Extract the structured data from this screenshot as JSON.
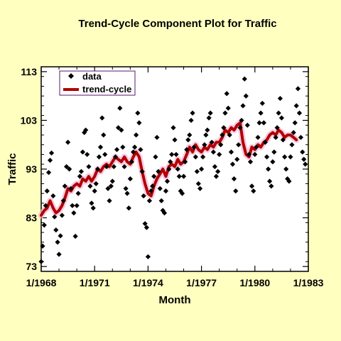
{
  "chart_data": {
    "type": "scatter",
    "title": "Trend-Cycle Component Plot for Traffic",
    "xlabel": "Month",
    "ylabel": "Traffic",
    "xlim": [
      1968,
      1983
    ],
    "ylim": [
      72,
      114
    ],
    "x_ticks": [
      {
        "value": 1968,
        "label": "1/1968"
      },
      {
        "value": 1971,
        "label": "1/1971"
      },
      {
        "value": 1974,
        "label": "1/1974"
      },
      {
        "value": 1977,
        "label": "1/1977"
      },
      {
        "value": 1980,
        "label": "1/1980"
      },
      {
        "value": 1983,
        "label": "1/1983"
      }
    ],
    "y_ticks": [
      {
        "value": 73,
        "label": "73"
      },
      {
        "value": 83,
        "label": "83"
      },
      {
        "value": 93,
        "label": "93"
      },
      {
        "value": 103,
        "label": "103"
      },
      {
        "value": 113,
        "label": "113"
      }
    ],
    "legend": {
      "position": "top-left",
      "items": [
        {
          "label": "data",
          "marker": "diamond",
          "color": "#000000"
        },
        {
          "label": "trend-cycle",
          "marker": "line",
          "color": "#b30000"
        }
      ]
    },
    "series": [
      {
        "name": "data",
        "style": "markers",
        "color": "#000000",
        "points": [
          [
            1968.0,
            74.0
          ],
          [
            1968.08,
            77.2
          ],
          [
            1968.17,
            81.5
          ],
          [
            1968.25,
            85.5
          ],
          [
            1968.33,
            88.5
          ],
          [
            1968.42,
            92.3
          ],
          [
            1968.5,
            94.8
          ],
          [
            1968.58,
            96.3
          ],
          [
            1968.67,
            87.5
          ],
          [
            1968.75,
            83.2
          ],
          [
            1968.83,
            80.5
          ],
          [
            1968.92,
            78.0
          ],
          [
            1969.0,
            75.5
          ],
          [
            1969.08,
            79.3
          ],
          [
            1969.17,
            83.5
          ],
          [
            1969.25,
            86.5
          ],
          [
            1969.33,
            89.5
          ],
          [
            1969.42,
            93.5
          ],
          [
            1969.5,
            98.5
          ],
          [
            1969.58,
            93.0
          ],
          [
            1969.67,
            89.0
          ],
          [
            1969.75,
            85.5
          ],
          [
            1969.83,
            84.0
          ],
          [
            1969.92,
            79.2
          ],
          [
            1970.0,
            85.5
          ],
          [
            1970.08,
            88.0
          ],
          [
            1970.17,
            91.5
          ],
          [
            1970.25,
            92.5
          ],
          [
            1970.33,
            96.5
          ],
          [
            1970.42,
            100.5
          ],
          [
            1970.5,
            101.0
          ],
          [
            1970.58,
            96.0
          ],
          [
            1970.67,
            93.5
          ],
          [
            1970.75,
            89.5
          ],
          [
            1970.83,
            86.0
          ],
          [
            1970.92,
            85.0
          ],
          [
            1971.0,
            88.5
          ],
          [
            1971.08,
            90.0
          ],
          [
            1971.17,
            93.0
          ],
          [
            1971.25,
            95.5
          ],
          [
            1971.33,
            97.5
          ],
          [
            1971.42,
            103.5
          ],
          [
            1971.5,
            100.0
          ],
          [
            1971.58,
            96.0
          ],
          [
            1971.67,
            93.5
          ],
          [
            1971.75,
            89.0
          ],
          [
            1971.83,
            86.5
          ],
          [
            1971.92,
            89.5
          ],
          [
            1972.0,
            90.5
          ],
          [
            1972.08,
            93.5
          ],
          [
            1972.17,
            95.5
          ],
          [
            1972.25,
            97.0
          ],
          [
            1972.33,
            101.5
          ],
          [
            1972.42,
            105.5
          ],
          [
            1972.5,
            101.0
          ],
          [
            1972.58,
            97.5
          ],
          [
            1972.67,
            93.5
          ],
          [
            1972.75,
            89.0
          ],
          [
            1972.83,
            88.0
          ],
          [
            1972.92,
            85.0
          ],
          [
            1973.0,
            91.0
          ],
          [
            1973.08,
            94.5
          ],
          [
            1973.17,
            96.5
          ],
          [
            1973.25,
            97.5
          ],
          [
            1973.33,
            100.0
          ],
          [
            1973.42,
            104.5
          ],
          [
            1973.5,
            102.5
          ],
          [
            1973.58,
            97.0
          ],
          [
            1973.67,
            92.5
          ],
          [
            1973.75,
            87.5
          ],
          [
            1973.83,
            81.8
          ],
          [
            1973.92,
            81.0
          ],
          [
            1974.0,
            75.0
          ],
          [
            1974.08,
            86.5
          ],
          [
            1974.17,
            88.5
          ],
          [
            1974.25,
            89.5
          ],
          [
            1974.33,
            91.5
          ],
          [
            1974.42,
            95.5
          ],
          [
            1974.5,
            99.5
          ],
          [
            1974.58,
            92.5
          ],
          [
            1974.67,
            89.0
          ],
          [
            1974.75,
            86.5
          ],
          [
            1974.83,
            84.5
          ],
          [
            1974.92,
            84.0
          ],
          [
            1975.0,
            88.5
          ],
          [
            1975.08,
            90.5
          ],
          [
            1975.17,
            93.0
          ],
          [
            1975.25,
            94.5
          ],
          [
            1975.33,
            96.0
          ],
          [
            1975.42,
            101.5
          ],
          [
            1975.5,
            99.0
          ],
          [
            1975.58,
            96.0
          ],
          [
            1975.67,
            93.0
          ],
          [
            1975.75,
            91.5
          ],
          [
            1975.83,
            88.5
          ],
          [
            1975.92,
            88.0
          ],
          [
            1976.0,
            91.5
          ],
          [
            1976.08,
            94.5
          ],
          [
            1976.17,
            97.0
          ],
          [
            1976.25,
            99.0
          ],
          [
            1976.33,
            100.0
          ],
          [
            1976.42,
            103.0
          ],
          [
            1976.5,
            104.5
          ],
          [
            1976.58,
            97.5
          ],
          [
            1976.67,
            95.5
          ],
          [
            1976.75,
            92.5
          ],
          [
            1976.83,
            90.0
          ],
          [
            1976.92,
            89.0
          ],
          [
            1977.0,
            93.0
          ],
          [
            1977.08,
            95.5
          ],
          [
            1977.17,
            98.0
          ],
          [
            1977.25,
            100.0
          ],
          [
            1977.33,
            101.0
          ],
          [
            1977.42,
            103.5
          ],
          [
            1977.5,
            104.5
          ],
          [
            1977.58,
            98.5
          ],
          [
            1977.67,
            96.5
          ],
          [
            1977.75,
            93.5
          ],
          [
            1977.83,
            91.5
          ],
          [
            1977.92,
            92.5
          ],
          [
            1978.0,
            96.0
          ],
          [
            1978.08,
            98.0
          ],
          [
            1978.17,
            100.0
          ],
          [
            1978.25,
            101.5
          ],
          [
            1978.33,
            104.5
          ],
          [
            1978.42,
            108.5
          ],
          [
            1978.5,
            105.5
          ],
          [
            1978.58,
            100.0
          ],
          [
            1978.67,
            96.5
          ],
          [
            1978.75,
            94.0
          ],
          [
            1978.83,
            91.0
          ],
          [
            1978.92,
            88.5
          ],
          [
            1979.0,
            95.0
          ],
          [
            1979.08,
            98.0
          ],
          [
            1979.17,
            101.5
          ],
          [
            1979.25,
            103.0
          ],
          [
            1979.33,
            106.0
          ],
          [
            1979.42,
            111.5
          ],
          [
            1979.5,
            108.0
          ],
          [
            1979.58,
            102.0
          ],
          [
            1979.67,
            96.0
          ],
          [
            1979.75,
            94.5
          ],
          [
            1979.83,
            89.5
          ],
          [
            1979.92,
            88.5
          ],
          [
            1980.0,
            96.0
          ],
          [
            1980.08,
            97.5
          ],
          [
            1980.17,
            99.5
          ],
          [
            1980.25,
            102.5
          ],
          [
            1980.33,
            104.5
          ],
          [
            1980.42,
            106.5
          ],
          [
            1980.5,
            102.5
          ],
          [
            1980.58,
            98.5
          ],
          [
            1980.67,
            95.5
          ],
          [
            1980.75,
            93.0
          ],
          [
            1980.83,
            90.5
          ],
          [
            1980.92,
            89.5
          ],
          [
            1981.0,
            94.5
          ],
          [
            1981.08,
            96.5
          ],
          [
            1981.17,
            99.5
          ],
          [
            1981.25,
            101.5
          ],
          [
            1981.33,
            104.5
          ],
          [
            1981.42,
            107.5
          ],
          [
            1981.5,
            103.5
          ],
          [
            1981.58,
            99.0
          ],
          [
            1981.67,
            95.5
          ],
          [
            1981.75,
            93.0
          ],
          [
            1981.83,
            91.0
          ],
          [
            1981.92,
            90.5
          ],
          [
            1982.0,
            95.5
          ],
          [
            1982.08,
            98.0
          ],
          [
            1982.17,
            100.5
          ],
          [
            1982.25,
            102.5
          ],
          [
            1982.33,
            106.0
          ],
          [
            1982.42,
            109.5
          ],
          [
            1982.5,
            104.5
          ],
          [
            1982.58,
            99.5
          ],
          [
            1982.67,
            96.5
          ],
          [
            1982.75,
            95.0
          ],
          [
            1982.83,
            94.0
          ]
        ]
      },
      {
        "name": "trend-cycle",
        "style": "line",
        "color": "#b30000",
        "points": [
          [
            1968.0,
            83.5
          ],
          [
            1968.17,
            84.5
          ],
          [
            1968.33,
            85.0
          ],
          [
            1968.5,
            86.5
          ],
          [
            1968.67,
            85.0
          ],
          [
            1968.83,
            84.0
          ],
          [
            1969.0,
            84.5
          ],
          [
            1969.17,
            85.5
          ],
          [
            1969.33,
            87.0
          ],
          [
            1969.5,
            89.0
          ],
          [
            1969.67,
            88.5
          ],
          [
            1969.83,
            89.5
          ],
          [
            1970.0,
            90.0
          ],
          [
            1970.17,
            89.5
          ],
          [
            1970.33,
            91.0
          ],
          [
            1970.5,
            90.5
          ],
          [
            1970.67,
            91.5
          ],
          [
            1970.83,
            90.5
          ],
          [
            1971.0,
            91.5
          ],
          [
            1971.17,
            93.0
          ],
          [
            1971.33,
            92.5
          ],
          [
            1971.5,
            93.5
          ],
          [
            1971.67,
            94.0
          ],
          [
            1971.83,
            93.5
          ],
          [
            1972.0,
            94.5
          ],
          [
            1972.17,
            95.5
          ],
          [
            1972.33,
            95.0
          ],
          [
            1972.5,
            94.5
          ],
          [
            1972.67,
            95.5
          ],
          [
            1972.83,
            94.5
          ],
          [
            1973.0,
            94.0
          ],
          [
            1973.17,
            95.5
          ],
          [
            1973.33,
            96.5
          ],
          [
            1973.5,
            95.5
          ],
          [
            1973.67,
            92.5
          ],
          [
            1973.83,
            90.0
          ],
          [
            1974.0,
            88.0
          ],
          [
            1974.17,
            87.5
          ],
          [
            1974.33,
            89.5
          ],
          [
            1974.5,
            91.0
          ],
          [
            1974.67,
            92.0
          ],
          [
            1974.83,
            93.0
          ],
          [
            1975.0,
            91.5
          ],
          [
            1975.17,
            93.5
          ],
          [
            1975.33,
            94.0
          ],
          [
            1975.5,
            93.5
          ],
          [
            1975.67,
            95.0
          ],
          [
            1975.83,
            94.0
          ],
          [
            1976.0,
            94.5
          ],
          [
            1976.17,
            96.0
          ],
          [
            1976.33,
            97.5
          ],
          [
            1976.5,
            96.5
          ],
          [
            1976.67,
            98.0
          ],
          [
            1976.83,
            97.0
          ],
          [
            1977.0,
            96.5
          ],
          [
            1977.17,
            97.5
          ],
          [
            1977.33,
            97.0
          ],
          [
            1977.5,
            98.0
          ],
          [
            1977.67,
            97.5
          ],
          [
            1977.83,
            98.5
          ],
          [
            1978.0,
            98.5
          ],
          [
            1978.17,
            99.5
          ],
          [
            1978.33,
            101.0
          ],
          [
            1978.5,
            100.5
          ],
          [
            1978.67,
            101.5
          ],
          [
            1978.83,
            101.0
          ],
          [
            1979.0,
            102.0
          ],
          [
            1979.17,
            102.5
          ],
          [
            1979.33,
            98.5
          ],
          [
            1979.5,
            96.0
          ],
          [
            1979.67,
            95.5
          ],
          [
            1979.83,
            97.5
          ],
          [
            1980.0,
            97.0
          ],
          [
            1980.17,
            98.0
          ],
          [
            1980.33,
            97.5
          ],
          [
            1980.5,
            98.5
          ],
          [
            1980.67,
            99.0
          ],
          [
            1980.83,
            100.0
          ],
          [
            1981.0,
            100.5
          ],
          [
            1981.17,
            100.0
          ],
          [
            1981.33,
            101.0
          ],
          [
            1981.5,
            100.5
          ],
          [
            1981.67,
            99.5
          ],
          [
            1981.83,
            100.0
          ],
          [
            1982.0,
            100.0
          ],
          [
            1982.17,
            99.5
          ],
          [
            1982.33,
            99.0
          ]
        ]
      }
    ]
  }
}
